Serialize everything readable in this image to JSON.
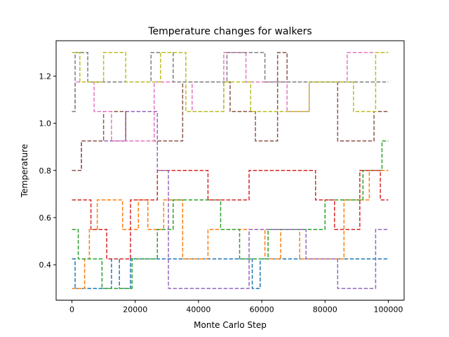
{
  "chart_data": {
    "type": "line",
    "title": "Temperature changes for walkers",
    "xlabel": "Monte Carlo Step",
    "ylabel": "Temperature",
    "xlim": [
      -5000,
      105000
    ],
    "ylim": [
      0.25,
      1.35
    ],
    "x_ticks": [
      0,
      20000,
      40000,
      60000,
      80000,
      100000
    ],
    "x_tick_labels": [
      "0",
      "20000",
      "40000",
      "60000",
      "80000",
      "100000"
    ],
    "y_ticks": [
      0.4,
      0.6,
      0.8,
      1.0,
      1.2
    ],
    "y_tick_labels": [
      "0.4",
      "0.6",
      "0.8",
      "1.0",
      "1.2"
    ],
    "temperature_levels": [
      0.3,
      0.425,
      0.55,
      0.675,
      0.8,
      0.925,
      1.05,
      1.175,
      1.3
    ],
    "grid": false,
    "legend": "none",
    "line_style": "dashed",
    "series": [
      {
        "color": "#1f77b4",
        "x": [
          0,
          1000,
          1000,
          12500,
          12500,
          15000,
          15000,
          18500,
          18500,
          57000,
          57000,
          59500,
          59500,
          82000,
          82000,
          100000
        ],
        "y": [
          0.425,
          0.425,
          0.3,
          0.3,
          0.425,
          0.425,
          0.3,
          0.3,
          0.425,
          0.425,
          0.3,
          0.3,
          0.425,
          0.425,
          0.425,
          0.425
        ]
      },
      {
        "color": "#ff7f0e",
        "x": [
          0,
          4000,
          4000,
          5500,
          5500,
          8000,
          8000,
          16000,
          16000,
          21000,
          21000,
          24000,
          24000,
          29000,
          29000,
          35000,
          35000,
          43000,
          43000,
          61000,
          61000,
          66000,
          66000,
          72000,
          72000,
          86000,
          86000,
          94000,
          94000,
          100000
        ],
        "y": [
          0.3,
          0.3,
          0.425,
          0.425,
          0.55,
          0.55,
          0.675,
          0.675,
          0.55,
          0.55,
          0.675,
          0.675,
          0.55,
          0.55,
          0.675,
          0.675,
          0.425,
          0.425,
          0.55,
          0.55,
          0.425,
          0.425,
          0.55,
          0.55,
          0.425,
          0.425,
          0.675,
          0.675,
          0.8,
          0.8
        ]
      },
      {
        "color": "#2ca02c",
        "x": [
          0,
          2000,
          2000,
          9500,
          9500,
          19000,
          19000,
          27000,
          27000,
          32000,
          32000,
          47000,
          47000,
          53000,
          53000,
          62000,
          62000,
          80000,
          80000,
          92000,
          92000,
          98000,
          98000,
          100000
        ],
        "y": [
          0.55,
          0.55,
          0.425,
          0.425,
          0.3,
          0.3,
          0.425,
          0.425,
          0.55,
          0.55,
          0.675,
          0.675,
          0.55,
          0.55,
          0.425,
          0.425,
          0.55,
          0.55,
          0.675,
          0.675,
          0.8,
          0.8,
          0.925,
          0.925
        ]
      },
      {
        "color": "#d62728",
        "x": [
          0,
          6000,
          6000,
          11000,
          11000,
          18500,
          18500,
          27000,
          27000,
          43000,
          43000,
          56000,
          56000,
          77000,
          77000,
          83000,
          83000,
          91000,
          91000,
          97500,
          97500,
          100000
        ],
        "y": [
          0.675,
          0.675,
          0.55,
          0.55,
          0.425,
          0.425,
          0.675,
          0.675,
          0.8,
          0.8,
          0.675,
          0.675,
          0.8,
          0.8,
          0.675,
          0.675,
          0.55,
          0.55,
          0.8,
          0.8,
          0.675,
          0.675
        ]
      },
      {
        "color": "#9467bd",
        "x": [
          0,
          3000,
          3000,
          17000,
          17000,
          27000,
          27000,
          30500,
          30500,
          56000,
          56000,
          74000,
          74000,
          84000,
          84000,
          96000,
          96000,
          100000
        ],
        "y": [
          0.8,
          0.8,
          0.925,
          0.925,
          1.05,
          1.05,
          0.8,
          0.8,
          0.3,
          0.3,
          0.55,
          0.55,
          0.425,
          0.425,
          0.3,
          0.3,
          0.55,
          0.55
        ]
      },
      {
        "color": "#8c564b",
        "x": [
          0,
          3000,
          3000,
          10000,
          10000,
          17000,
          17000,
          35000,
          35000,
          50000,
          50000,
          58000,
          58000,
          65000,
          65000,
          68000,
          68000,
          84000,
          84000,
          95500,
          95500,
          100000
        ],
        "y": [
          0.8,
          0.8,
          0.925,
          0.925,
          1.05,
          1.05,
          0.925,
          0.925,
          1.175,
          1.175,
          1.05,
          1.05,
          0.925,
          0.925,
          1.3,
          1.3,
          1.175,
          1.175,
          0.925,
          0.925,
          1.05,
          1.05
        ]
      },
      {
        "color": "#e377c2",
        "x": [
          0,
          1000,
          1000,
          7000,
          7000,
          12500,
          12500,
          26000,
          26000,
          38000,
          38000,
          48000,
          48000,
          55000,
          55000,
          68000,
          68000,
          75000,
          75000,
          87000,
          87000,
          100000
        ],
        "y": [
          1.05,
          1.05,
          1.175,
          1.175,
          1.05,
          1.05,
          0.925,
          0.925,
          1.175,
          1.175,
          1.05,
          1.05,
          1.3,
          1.3,
          1.175,
          1.175,
          1.05,
          1.05,
          1.175,
          1.175,
          1.3,
          1.3
        ]
      },
      {
        "color": "#7f7f7f",
        "x": [
          0,
          1000,
          1000,
          5000,
          5000,
          25000,
          25000,
          32000,
          32000,
          49000,
          49000,
          61000,
          61000,
          69000,
          69000,
          100000
        ],
        "y": [
          1.05,
          1.05,
          1.3,
          1.3,
          1.175,
          1.175,
          1.3,
          1.3,
          1.175,
          1.175,
          1.3,
          1.3,
          1.175,
          1.175,
          1.175,
          1.175
        ]
      },
      {
        "color": "#bcbd22",
        "x": [
          0,
          2500,
          2500,
          10000,
          10000,
          17000,
          17000,
          28000,
          28000,
          36000,
          36000,
          48000,
          48000,
          56500,
          56500,
          75000,
          75000,
          89000,
          89000,
          96000,
          96000,
          100000
        ],
        "y": [
          1.3,
          1.3,
          1.175,
          1.175,
          1.3,
          1.3,
          1.175,
          1.175,
          1.3,
          1.3,
          1.05,
          1.05,
          1.175,
          1.175,
          1.05,
          1.05,
          1.175,
          1.175,
          1.05,
          1.05,
          1.3,
          1.3
        ]
      }
    ]
  }
}
